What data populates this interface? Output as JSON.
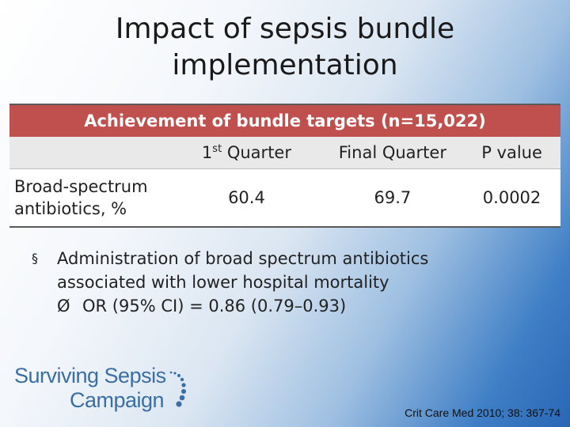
{
  "slide": {
    "title_line1": "Impact of sepsis bundle",
    "title_line2": "implementation"
  },
  "table": {
    "header": "Achievement of bundle targets (n=15,022)",
    "columns": [
      {
        "text": "1",
        "superscript": "st",
        "rest": " Quarter"
      },
      {
        "text": "Final Quarter"
      },
      {
        "text": "P value"
      }
    ],
    "rows": [
      {
        "label_line1": "Broad-spectrum",
        "label_line2": "antibiotics, %",
        "q1": "60.4",
        "final": "69.7",
        "p": "0.0002"
      }
    ]
  },
  "bullets": {
    "main_line1": "Administration of broad spectrum antibiotics",
    "main_line2": "associated with lower hospital mortality",
    "sub": "OR (95% CI) = 0.86 (0.79–0.93)",
    "main_marker": "§",
    "sub_marker": "Ø"
  },
  "logo": {
    "line1": "Surviving Sepsis",
    "line2": "Campaign"
  },
  "citation": "Crit Care Med 2010; 38: 367-74",
  "colors": {
    "table_header": "#c0504d",
    "subheader": "#e9e9e9",
    "logo_blue": "#3a6ea5",
    "background_accent": "#2a66b5"
  }
}
